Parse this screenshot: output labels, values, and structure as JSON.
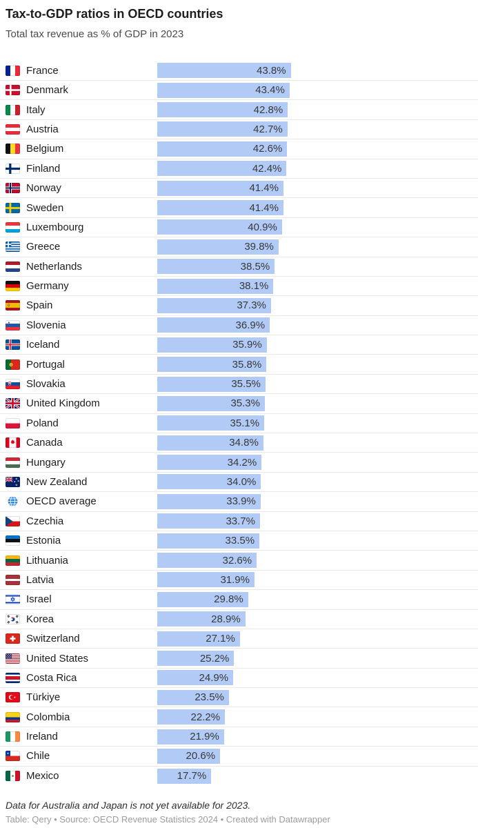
{
  "header": {
    "title": "Tax-to-GDP ratios in OECD countries",
    "subtitle": "Total tax revenue as % of GDP in 2023"
  },
  "chart_data": {
    "type": "bar",
    "orientation": "horizontal",
    "title": "Tax-to-GDP ratios in OECD countries",
    "subtitle": "Total tax revenue as % of GDP in 2023",
    "xlabel": "",
    "ylabel": "",
    "axis_range": [
      0,
      100
    ],
    "grid": false,
    "legend": "none",
    "bar_color": "#b2cbf6",
    "value_suffix": "%",
    "categories": [
      "France",
      "Denmark",
      "Italy",
      "Austria",
      "Belgium",
      "Finland",
      "Norway",
      "Sweden",
      "Luxembourg",
      "Greece",
      "Netherlands",
      "Germany",
      "Spain",
      "Slovenia",
      "Iceland",
      "Portugal",
      "Slovakia",
      "United Kingdom",
      "Poland",
      "Canada",
      "Hungary",
      "New Zealand",
      "OECD average",
      "Czechia",
      "Estonia",
      "Lithuania",
      "Latvia",
      "Israel",
      "Korea",
      "Switzerland",
      "United States",
      "Costa Rica",
      "Türkiye",
      "Colombia",
      "Ireland",
      "Chile",
      "Mexico"
    ],
    "values": [
      43.8,
      43.4,
      42.8,
      42.7,
      42.6,
      42.4,
      41.4,
      41.4,
      40.9,
      39.8,
      38.5,
      38.1,
      37.3,
      36.9,
      35.9,
      35.8,
      35.5,
      35.3,
      35.1,
      34.8,
      34.2,
      34.0,
      33.9,
      33.7,
      33.5,
      32.6,
      31.9,
      29.8,
      28.9,
      27.1,
      25.2,
      24.9,
      23.5,
      22.2,
      21.9,
      20.6,
      17.7
    ],
    "value_labels": [
      "43.8%",
      "43.4%",
      "42.8%",
      "42.7%",
      "42.6%",
      "42.4%",
      "41.4%",
      "41.4%",
      "40.9%",
      "39.8%",
      "38.5%",
      "38.1%",
      "37.3%",
      "36.9%",
      "35.9%",
      "35.8%",
      "35.5%",
      "35.3%",
      "35.1%",
      "34.8%",
      "34.2%",
      "34.0%",
      "33.9%",
      "33.7%",
      "33.5%",
      "32.6%",
      "31.9%",
      "29.8%",
      "28.9%",
      "27.1%",
      "25.2%",
      "24.9%",
      "23.5%",
      "22.2%",
      "21.9%",
      "20.6%",
      "17.7%"
    ],
    "flag_icons": [
      "france-flag-icon",
      "denmark-flag-icon",
      "italy-flag-icon",
      "austria-flag-icon",
      "belgium-flag-icon",
      "finland-flag-icon",
      "norway-flag-icon",
      "sweden-flag-icon",
      "luxembourg-flag-icon",
      "greece-flag-icon",
      "netherlands-flag-icon",
      "germany-flag-icon",
      "spain-flag-icon",
      "slovenia-flag-icon",
      "iceland-flag-icon",
      "portugal-flag-icon",
      "slovakia-flag-icon",
      "united-kingdom-flag-icon",
      "poland-flag-icon",
      "canada-flag-icon",
      "hungary-flag-icon",
      "new-zealand-flag-icon",
      "oecd-globe-icon",
      "czechia-flag-icon",
      "estonia-flag-icon",
      "lithuania-flag-icon",
      "latvia-flag-icon",
      "israel-flag-icon",
      "korea-flag-icon",
      "switzerland-flag-icon",
      "united-states-flag-icon",
      "costa-rica-flag-icon",
      "turkiye-flag-icon",
      "colombia-flag-icon",
      "ireland-flag-icon",
      "chile-flag-icon",
      "mexico-flag-icon"
    ]
  },
  "footer": {
    "note": "Data for Australia and Japan is not yet available for 2023.",
    "credits": "Table: Qery • Source: OECD Revenue Statistics 2024 • Created with Datawrapper"
  }
}
